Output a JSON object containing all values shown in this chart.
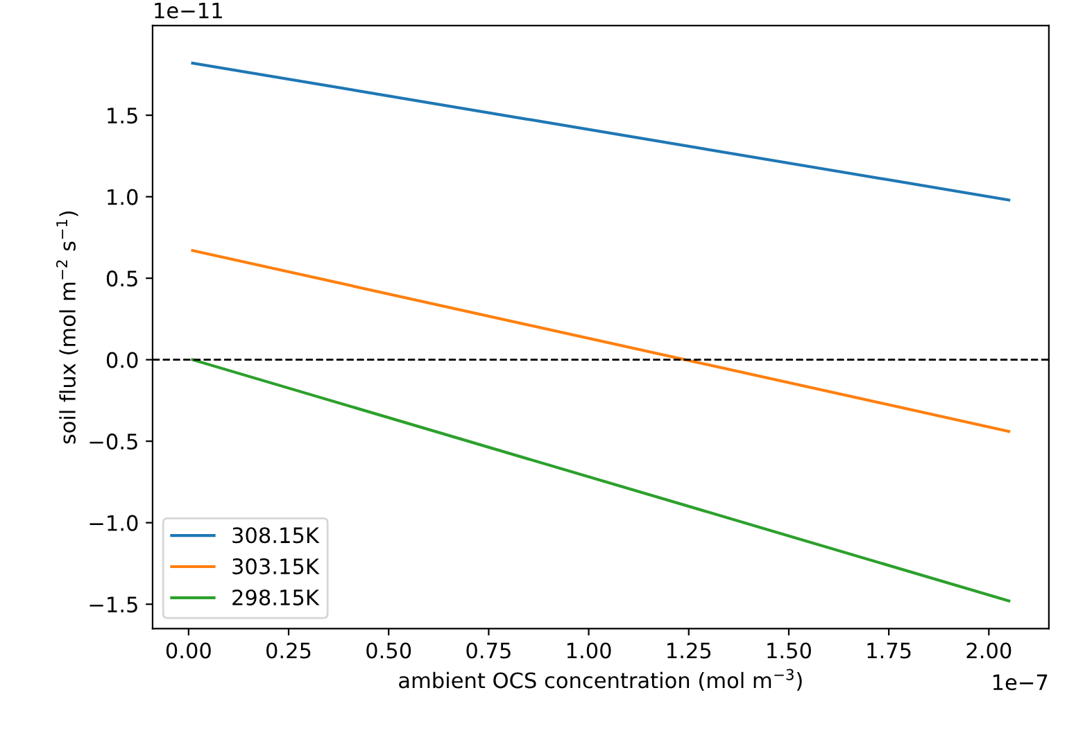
{
  "chart_data": {
    "type": "line",
    "xlabel": "ambient OCS concentration (mol m$^{−3}$)",
    "ylabel": "soil flux (mol m$^{−2}$ s$^{−1}$)",
    "x": [
      0.01,
      2.05
    ],
    "series": [
      {
        "name": "308.15K",
        "color": "#1f77b4",
        "values": [
          1.82,
          0.98
        ]
      },
      {
        "name": "303.15K",
        "color": "#ff7f0e",
        "values": [
          0.67,
          -0.44
        ]
      },
      {
        "name": "298.15K",
        "color": "#2ca02c",
        "values": [
          0.0,
          -1.48
        ]
      }
    ],
    "xlim": [
      -0.09,
      2.15
    ],
    "ylim": [
      -1.65,
      2.05
    ],
    "xticks": [
      {
        "value": 0,
        "label": "0.00"
      },
      0.25,
      {
        "value": 0.5,
        "label": "0.50"
      },
      0.75,
      {
        "value": 1,
        "label": "1.00"
      },
      1.25,
      {
        "value": 1.5,
        "label": "1.50"
      },
      1.75,
      {
        "value": 2,
        "label": "2.00"
      }
    ],
    "yticks": [
      {
        "value": -1.5,
        "label": "−1.5"
      },
      {
        "value": -1,
        "label": "−1.0"
      },
      {
        "value": -0.5,
        "label": "−0.5"
      },
      {
        "value": 0,
        "label": "0.0"
      },
      0.5,
      {
        "value": 1,
        "label": "1.0"
      },
      1.5
    ],
    "ref_lines": [
      {
        "axis": "y",
        "value": 0,
        "color": "#000000",
        "line_style": "dashed"
      }
    ],
    "annotations": [
      "1e−11",
      "1e−7"
    ],
    "legend": "bottom left",
    "grid": false
  }
}
